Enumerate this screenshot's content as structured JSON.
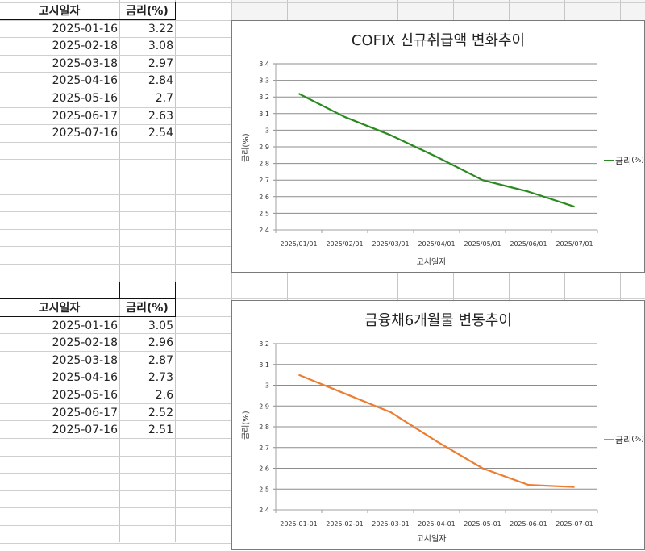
{
  "sheet": {
    "table1": {
      "headers": [
        "고시일자",
        "금리(%)"
      ],
      "rows": [
        [
          "2025-01-16",
          "3.22"
        ],
        [
          "2025-02-18",
          "3.08"
        ],
        [
          "2025-03-18",
          "2.97"
        ],
        [
          "2025-04-16",
          "2.84"
        ],
        [
          "2025-05-16",
          "2.7"
        ],
        [
          "2025-06-17",
          "2.63"
        ],
        [
          "2025-07-16",
          "2.54"
        ]
      ]
    },
    "table2": {
      "headers": [
        "고시일자",
        "금리(%)"
      ],
      "rows": [
        [
          "2025-01-16",
          "3.05"
        ],
        [
          "2025-02-18",
          "2.96"
        ],
        [
          "2025-03-18",
          "2.87"
        ],
        [
          "2025-04-16",
          "2.73"
        ],
        [
          "2025-05-16",
          "2.6"
        ],
        [
          "2025-06-17",
          "2.52"
        ],
        [
          "2025-07-16",
          "2.51"
        ]
      ]
    }
  },
  "chart_data": [
    {
      "type": "line",
      "title": "COFIX 신규취급액 변화추이",
      "xlabel": "고시일자",
      "ylabel": "금리(%)",
      "categories": [
        "2025/01/01",
        "2025/02/01",
        "2025/03/01",
        "2025/04/01",
        "2025/05/01",
        "2025/06/01",
        "2025/07/01"
      ],
      "series": [
        {
          "name": "금리(%)",
          "color": "#2a8a1f",
          "values": [
            3.22,
            3.08,
            2.97,
            2.84,
            2.7,
            2.63,
            2.54
          ]
        }
      ],
      "ylim": [
        2.4,
        3.4
      ],
      "yticks": [
        "3.4",
        "3.3",
        "3.2",
        "3.1",
        "3",
        "2.9",
        "2.8",
        "2.7",
        "2.6",
        "2.5",
        "2.4"
      ],
      "grid": true,
      "legend_position": "right"
    },
    {
      "type": "line",
      "title": "금융채6개월물 변동추이",
      "xlabel": "고시일자",
      "ylabel": "금리(%)",
      "categories": [
        "2025-01-01",
        "2025-02-01",
        "2025-03-01",
        "2025-04-01",
        "2025-05-01",
        "2025-06-01",
        "2025-07-01"
      ],
      "series": [
        {
          "name": "금리(%)",
          "color": "#ed7d31",
          "values": [
            3.05,
            2.96,
            2.87,
            2.73,
            2.6,
            2.52,
            2.51
          ]
        }
      ],
      "ylim": [
        2.4,
        3.2
      ],
      "yticks": [
        "3.2",
        "3.1",
        "3",
        "2.9",
        "2.8",
        "2.7",
        "2.6",
        "2.5",
        "2.4"
      ],
      "grid": true,
      "legend_position": "right"
    }
  ],
  "legend": {
    "chart1_label_main": "금리",
    "chart1_label_unit": "(%)",
    "chart2_label_main": "금리",
    "chart2_label_unit": "(%)"
  }
}
